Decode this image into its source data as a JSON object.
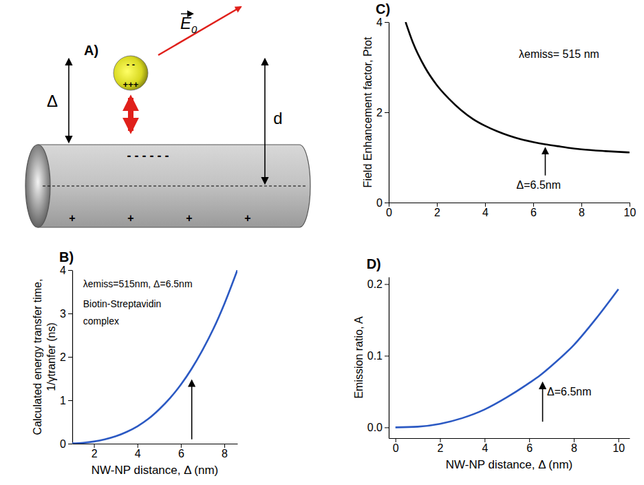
{
  "diagram": {
    "panel": "A)",
    "field_label": "E",
    "field_subscript": "0",
    "gap_label": "Δ",
    "distance_label": "d",
    "particle_charges": [
      "- -",
      "+++"
    ],
    "wire_charges_top": "- - - - - -",
    "wire_charges_bottom": [
      "+",
      "+",
      "+",
      "+"
    ]
  },
  "chart_data": [
    {
      "panel": "B)",
      "type": "line",
      "xlabel": "NW-NP distance, Δ (nm)",
      "ylabel": [
        "Calculated energy transfer time,",
        "1/γtranfer (ns)"
      ],
      "x": [
        1,
        1.5,
        2,
        2.5,
        3,
        3.5,
        4,
        4.5,
        5,
        5.5,
        6,
        6.5,
        7,
        7.5,
        8,
        8.6
      ],
      "series": [
        {
          "color": "#2b59c3",
          "values": [
            0.006,
            0.02,
            0.05,
            0.1,
            0.17,
            0.27,
            0.4,
            0.57,
            0.79,
            1.05,
            1.36,
            1.73,
            2.16,
            2.65,
            3.22,
            4.0
          ]
        }
      ],
      "xlim": [
        1,
        8.6
      ],
      "ylim": [
        0,
        4
      ],
      "xticks": [
        2,
        4,
        6,
        8
      ],
      "yticks": [
        0,
        1,
        2,
        3,
        4
      ],
      "annotations": [
        {
          "text": "λemiss=515nm, Δ=6.5nm",
          "x": 1.5,
          "y": 3.6
        },
        {
          "text": "Biotin-Streptavidin",
          "x": 1.5,
          "y": 3.15
        },
        {
          "text": "complex",
          "x": 1.5,
          "y": 2.75
        }
      ],
      "arrows": [
        {
          "x": 6.5,
          "y": [
            0.1,
            1.45
          ]
        }
      ]
    },
    {
      "panel": "C)",
      "type": "line",
      "ylabel": [
        "Field Enhancement factor, Ptot"
      ],
      "x": [
        0.7,
        1,
        1.5,
        2,
        2.5,
        3,
        3.5,
        4,
        4.5,
        5,
        5.5,
        6,
        6.5,
        7,
        7.5,
        8,
        9,
        10
      ],
      "series": [
        {
          "color": "#000000",
          "values": [
            4.0,
            3.55,
            3.0,
            2.6,
            2.3,
            2.05,
            1.85,
            1.7,
            1.58,
            1.48,
            1.4,
            1.34,
            1.29,
            1.25,
            1.21,
            1.18,
            1.14,
            1.11
          ]
        }
      ],
      "xlim": [
        0,
        10
      ],
      "ylim": [
        0,
        4
      ],
      "xticks": [
        0,
        2,
        4,
        6,
        8,
        10
      ],
      "yticks": [
        0,
        2,
        4
      ],
      "annotations": [
        {
          "text": "λemiss= 515 nm",
          "x": 5.4,
          "y": 3.2
        },
        {
          "text": "Δ=6.5nm",
          "x": 5.3,
          "y": 0.3
        }
      ],
      "arrows": [
        {
          "x": 6.5,
          "y": [
            0.6,
            1.2
          ]
        }
      ]
    },
    {
      "panel": "D)",
      "type": "line",
      "xlabel": "NW-NP distance, Δ (nm)",
      "ylabel": [
        "Emission ratio, A"
      ],
      "x": [
        0,
        1,
        2,
        3,
        4,
        5,
        6,
        6.5,
        7,
        8,
        9,
        10
      ],
      "series": [
        {
          "color": "#2b59c3",
          "values": [
            0.0,
            0.001,
            0.005,
            0.013,
            0.025,
            0.042,
            0.062,
            0.073,
            0.086,
            0.115,
            0.152,
            0.193
          ]
        }
      ],
      "xlim": [
        -0.3,
        10.5
      ],
      "ylim": [
        -0.015,
        0.21
      ],
      "xticks": [
        0,
        2,
        4,
        6,
        8,
        10
      ],
      "yticks": [
        {
          "value": 0,
          "label": "0.0"
        },
        {
          "value": 0.1,
          "label": "0.1"
        },
        {
          "value": 0.2,
          "label": "0.2"
        }
      ],
      "annotations": [
        {
          "text": "Δ=6.5nm",
          "x": 6.8,
          "y": 0.045
        }
      ],
      "arrows": [
        {
          "x": 6.6,
          "y": [
            0.008,
            0.062
          ]
        }
      ]
    }
  ]
}
